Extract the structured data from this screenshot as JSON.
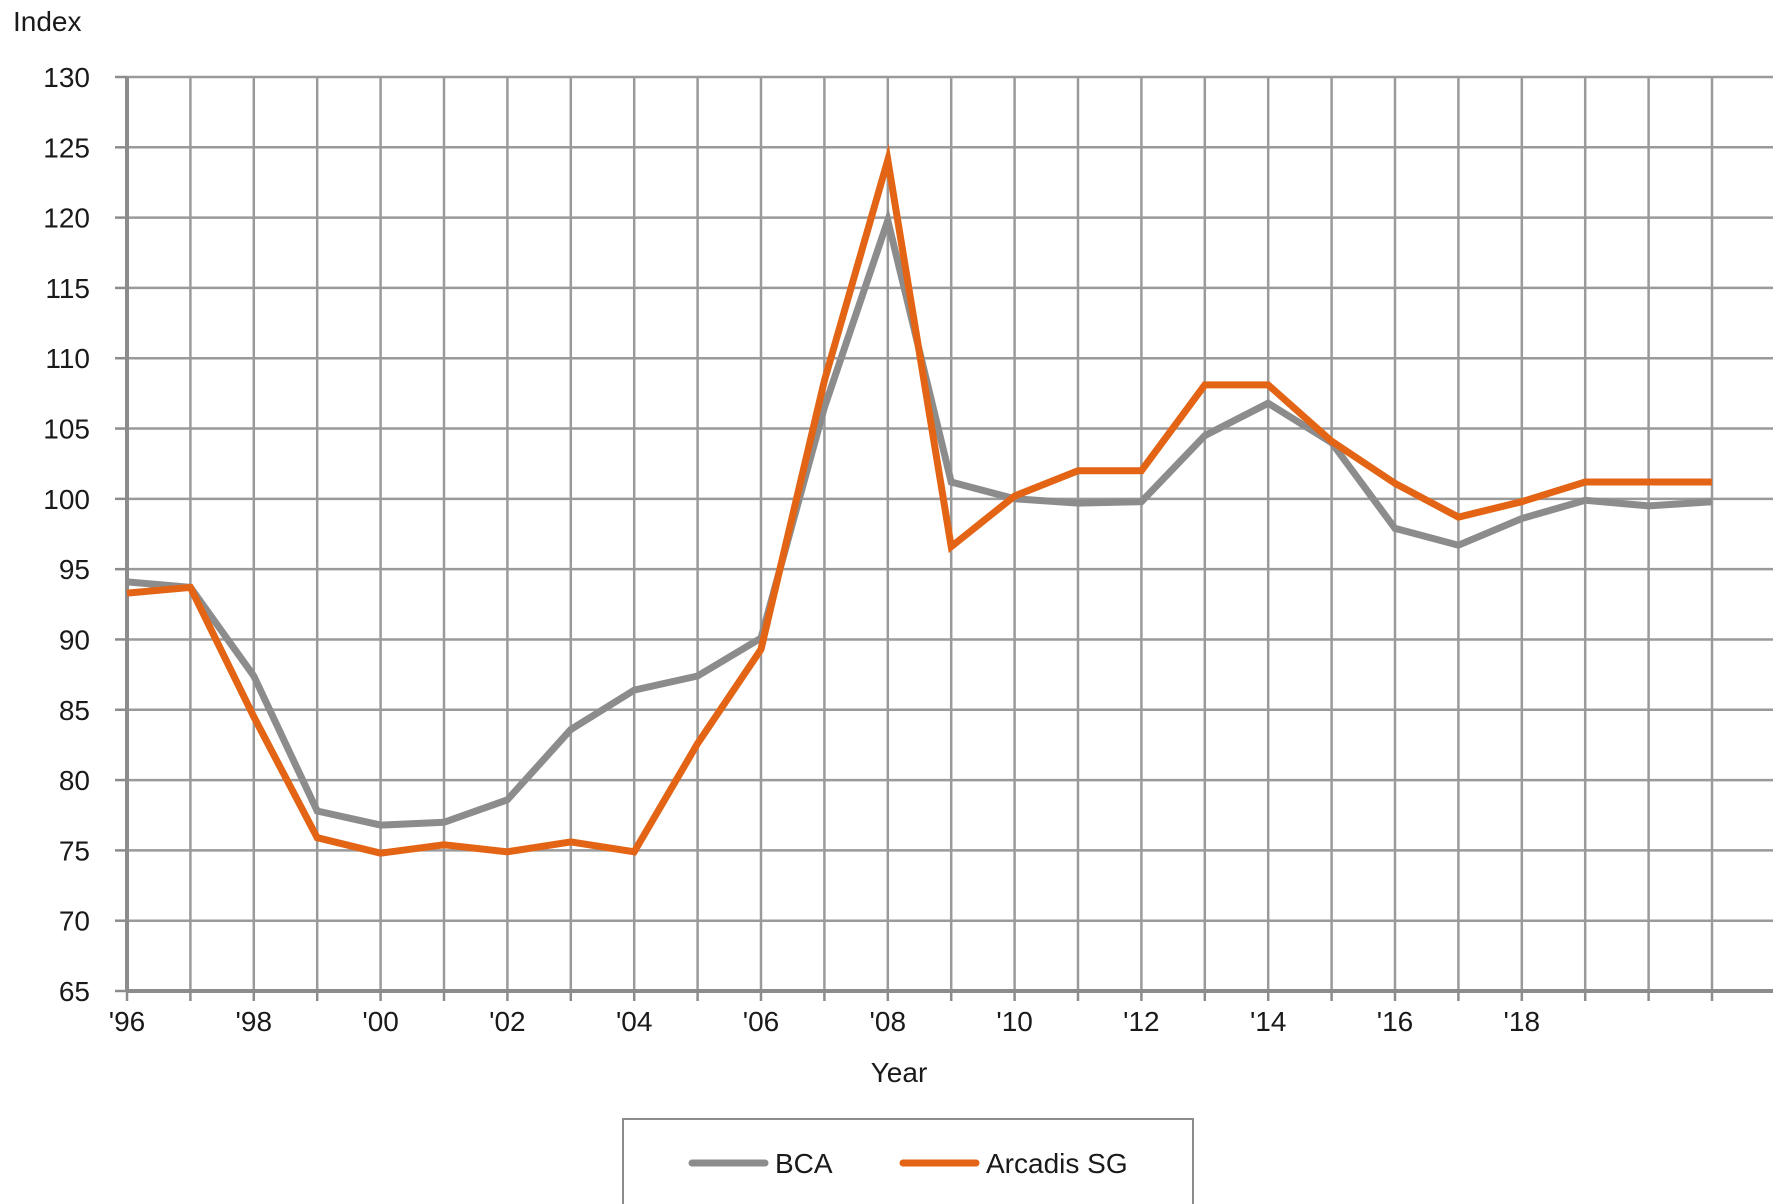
{
  "chart_data": {
    "type": "line",
    "title": "",
    "xlabel": "Year",
    "ylabel": "Index",
    "ylim": [
      65,
      130
    ],
    "yticks": [
      65,
      70,
      75,
      80,
      85,
      90,
      95,
      100,
      105,
      110,
      115,
      120,
      125,
      130
    ],
    "x": [
      1996,
      1997,
      1998,
      1999,
      2000,
      2001,
      2002,
      2003,
      2004,
      2005,
      2006,
      2007,
      2008,
      2009,
      2010,
      2011,
      2012,
      2013,
      2014,
      2015,
      2016,
      2017,
      2018,
      2019,
      2020,
      2021
    ],
    "xtick_labels": [
      "'96",
      "'98",
      "'00",
      "'02",
      "'04",
      "'06",
      "'08",
      "'10",
      "'12",
      "'14",
      "'16",
      "'18"
    ],
    "xtick_years": [
      1996,
      1998,
      2000,
      2002,
      2004,
      2006,
      2008,
      2010,
      2012,
      2014,
      2016,
      2018
    ],
    "grid": true,
    "legend_position": "bottom",
    "series": [
      {
        "name": "BCA",
        "color": "#8c8c8c",
        "values": [
          94.1,
          93.7,
          87.4,
          77.8,
          76.8,
          77.0,
          78.6,
          83.6,
          86.4,
          87.4,
          90.1,
          106.5,
          119.8,
          101.2,
          100.0,
          99.7,
          99.8,
          104.5,
          106.8,
          104.0,
          97.9,
          96.7,
          98.6,
          99.9,
          99.5,
          99.8
        ]
      },
      {
        "name": "Arcadis SG",
        "color": "#e36414",
        "values": [
          93.3,
          93.7,
          84.5,
          75.9,
          74.8,
          75.4,
          74.9,
          75.6,
          74.9,
          82.6,
          89.3,
          108.4,
          124.1,
          96.6,
          100.2,
          102.0,
          102.0,
          108.1,
          108.1,
          104.1,
          101.1,
          98.7,
          99.8,
          101.2,
          101.2,
          101.2
        ]
      }
    ]
  }
}
